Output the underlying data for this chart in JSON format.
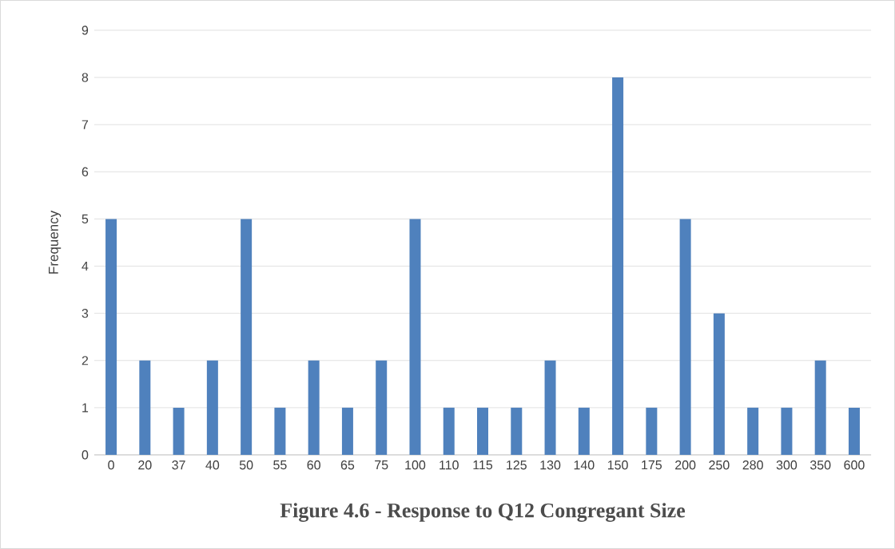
{
  "chart_data": {
    "type": "bar",
    "title": "Figure 4.6 - Response to Q12 Congregant Size",
    "ylabel": "Frequency",
    "categories": [
      "0",
      "20",
      "37",
      "40",
      "50",
      "55",
      "60",
      "65",
      "75",
      "100",
      "110",
      "115",
      "125",
      "130",
      "140",
      "150",
      "175",
      "200",
      "250",
      "280",
      "300",
      "350",
      "600"
    ],
    "values": [
      5,
      2,
      1,
      2,
      5,
      1,
      2,
      1,
      2,
      5,
      1,
      1,
      1,
      2,
      1,
      8,
      1,
      5,
      3,
      1,
      1,
      2,
      1
    ],
    "color": "#4f81bd",
    "ylim": [
      0,
      9
    ],
    "yticks": [
      0,
      1,
      2,
      3,
      4,
      5,
      6,
      7,
      8,
      9
    ],
    "grid": "y"
  }
}
